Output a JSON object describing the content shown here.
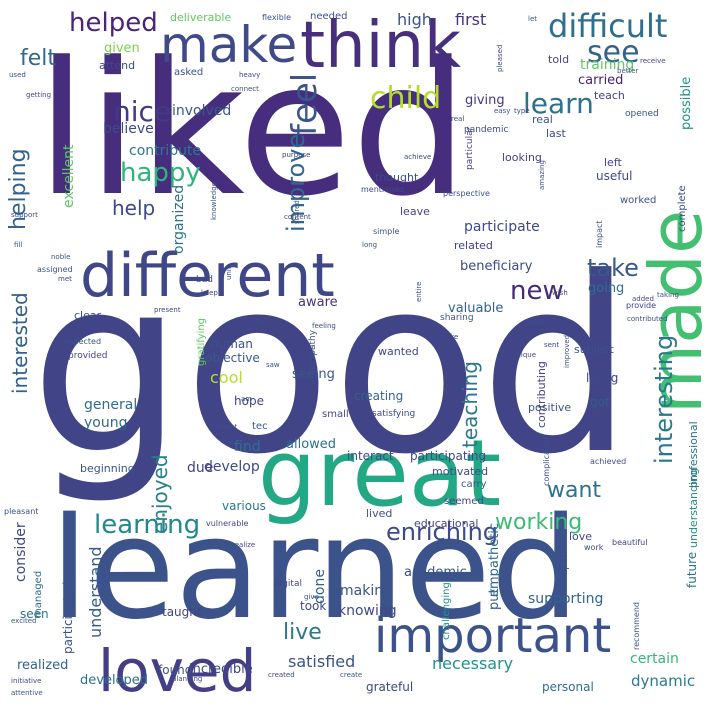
{
  "words": [
    {
      "text": "liked",
      "color": "#462d7e"
    },
    {
      "text": "good",
      "color": "#414487"
    },
    {
      "text": "learned",
      "color": "#3b528b"
    },
    {
      "text": "think",
      "color": "#472f7d"
    },
    {
      "text": "make",
      "color": "#3e4a89"
    },
    {
      "text": "great",
      "color": "#22a884"
    },
    {
      "text": "different",
      "color": "#3f4788"
    },
    {
      "text": "made",
      "color": "#43bf71"
    },
    {
      "text": "important",
      "color": "#3b528b"
    },
    {
      "text": "loved",
      "color": "#433e85"
    },
    {
      "text": "difficult",
      "color": "#2e6e8e"
    },
    {
      "text": "see",
      "color": "#33638d"
    },
    {
      "text": "helped",
      "color": "#482576"
    },
    {
      "text": "child",
      "color": "#b5de2b"
    },
    {
      "text": "learn",
      "color": "#2d718e"
    },
    {
      "text": "nice",
      "color": "#443a83"
    },
    {
      "text": "feel",
      "color": "#3a548c"
    },
    {
      "text": "felt",
      "color": "#31688e"
    },
    {
      "text": "improve",
      "color": "#31688e"
    },
    {
      "text": "happy",
      "color": "#2fb47c"
    },
    {
      "text": "help",
      "color": "#3e4989"
    },
    {
      "text": "helping",
      "color": "#33638d"
    },
    {
      "text": "interesting",
      "color": "#29798e"
    },
    {
      "text": "new",
      "color": "#472c7a"
    },
    {
      "text": "take",
      "color": "#38598c"
    },
    {
      "text": "teaching",
      "color": "#2a778e"
    },
    {
      "text": "enjoyed",
      "color": "#277f8e"
    },
    {
      "text": "interested",
      "color": "#34608d"
    },
    {
      "text": "want",
      "color": "#2c728e"
    },
    {
      "text": "learning",
      "color": "#24878e"
    },
    {
      "text": "working",
      "color": "#3bbb75"
    },
    {
      "text": "enriching",
      "color": "#3e4989"
    },
    {
      "text": "live",
      "color": "#2a788e"
    },
    {
      "text": "understand",
      "color": "#365c8d"
    },
    {
      "text": "satisfied",
      "color": "#3a548c"
    },
    {
      "text": "necessary",
      "color": "#20928c"
    },
    {
      "text": "consider",
      "color": "#3f4788"
    },
    {
      "text": "future",
      "color": "#2c728e"
    },
    {
      "text": "dynamic",
      "color": "#297b8e"
    },
    {
      "text": "participate",
      "color": "#3e4a89"
    },
    {
      "text": "high",
      "color": "#3b528b"
    },
    {
      "text": "first",
      "color": "#46337f"
    },
    {
      "text": "training",
      "color": "#5ec962"
    },
    {
      "text": "contribute",
      "color": "#2a788e"
    },
    {
      "text": "given",
      "color": "#7ad151"
    },
    {
      "text": "excellent",
      "color": "#5ec962"
    },
    {
      "text": "believe",
      "color": "#3e4a89"
    },
    {
      "text": "involved",
      "color": "#38598c"
    },
    {
      "text": "giving",
      "color": "#453882"
    },
    {
      "text": "carried",
      "color": "#482173"
    },
    {
      "text": "possible",
      "color": "#21918c"
    },
    {
      "text": "organized",
      "color": "#2c738e"
    },
    {
      "text": "going",
      "color": "#2e6f8e"
    },
    {
      "text": "beneficiary",
      "color": "#3f4889"
    },
    {
      "text": "aware",
      "color": "#46327e"
    },
    {
      "text": "valuable",
      "color": "#33638d"
    },
    {
      "text": "human",
      "color": "#3b528b"
    },
    {
      "text": "objective",
      "color": "#38598c"
    },
    {
      "text": "cool",
      "color": "#b5de2b"
    },
    {
      "text": "general",
      "color": "#2f6c8e"
    },
    {
      "text": "young",
      "color": "#31688e"
    },
    {
      "text": "develop",
      "color": "#3e4989"
    },
    {
      "text": "due",
      "color": "#414487"
    },
    {
      "text": "find",
      "color": "#2d708e"
    },
    {
      "text": "seeing",
      "color": "#39558c"
    },
    {
      "text": "creating",
      "color": "#33638d"
    },
    {
      "text": "allowed",
      "color": "#2c728e"
    },
    {
      "text": "hope",
      "color": "#414487"
    },
    {
      "text": "beginning",
      "color": "#3b528b"
    },
    {
      "text": "various",
      "color": "#2a788e"
    },
    {
      "text": "participating",
      "color": "#3e4989"
    },
    {
      "text": "interact",
      "color": "#3e4989"
    },
    {
      "text": "making",
      "color": "#3b528b"
    },
    {
      "text": "knowing",
      "color": "#3e4989"
    },
    {
      "text": "done",
      "color": "#365c8d"
    },
    {
      "text": "put",
      "color": "#34608d"
    },
    {
      "text": "empathetic",
      "color": "#2f6c8e"
    },
    {
      "text": "certain",
      "color": "#35b779"
    },
    {
      "text": "supporting",
      "color": "#33638d"
    },
    {
      "text": "academic",
      "color": "#3b528b"
    },
    {
      "text": "incredible",
      "color": "#3e4989"
    },
    {
      "text": "developed",
      "color": "#2d708e"
    },
    {
      "text": "realized",
      "color": "#33638d"
    },
    {
      "text": "found",
      "color": "#3b528b"
    },
    {
      "text": "grateful",
      "color": "#3e4989"
    },
    {
      "text": "personal",
      "color": "#2e6e8e"
    },
    {
      "text": "taught",
      "color": "#414487"
    },
    {
      "text": "took",
      "color": "#3e4989"
    },
    {
      "text": "seen",
      "color": "#2d708e"
    },
    {
      "text": "participated",
      "color": "#3b528b"
    },
    {
      "text": "managed",
      "color": "#2c728e"
    },
    {
      "text": "motivated",
      "color": "#3e4989"
    },
    {
      "text": "educational",
      "color": "#414487"
    },
    {
      "text": "lived",
      "color": "#3b528b"
    },
    {
      "text": "love",
      "color": "#414487"
    },
    {
      "text": "understanding",
      "color": "#21918c"
    },
    {
      "text": "professional",
      "color": "#2c728e"
    },
    {
      "text": "contributing",
      "color": "#414487"
    },
    {
      "text": "positive",
      "color": "#3b528b"
    },
    {
      "text": "living",
      "color": "#3e4989"
    },
    {
      "text": "got",
      "color": "#365c8d"
    },
    {
      "text": "wanted",
      "color": "#3e4989"
    },
    {
      "text": "subject",
      "color": "#3b528b"
    },
    {
      "text": "related",
      "color": "#414487"
    },
    {
      "text": "clear",
      "color": "#3e4989"
    },
    {
      "text": "looking",
      "color": "#414487"
    },
    {
      "text": "thought",
      "color": "#3e4989"
    },
    {
      "text": "leave",
      "color": "#414487"
    },
    {
      "text": "worked",
      "color": "#3b528b"
    },
    {
      "text": "useful",
      "color": "#3e4989"
    },
    {
      "text": "left",
      "color": "#414487"
    },
    {
      "text": "last",
      "color": "#3e4989"
    },
    {
      "text": "real",
      "color": "#3b528b"
    },
    {
      "text": "teach",
      "color": "#414487"
    },
    {
      "text": "told",
      "color": "#3e4989"
    },
    {
      "text": "needed",
      "color": "#3b528b"
    },
    {
      "text": "deliverable",
      "color": "#5ec962"
    },
    {
      "text": "attend",
      "color": "#3e4989"
    },
    {
      "text": "asked",
      "color": "#3b528b"
    },
    {
      "text": "gratifying",
      "color": "#5ec962"
    },
    {
      "text": "tec",
      "color": "#3b528b"
    },
    {
      "text": "small",
      "color": "#3e4989"
    },
    {
      "text": "seemed",
      "color": "#414487"
    },
    {
      "text": "carry",
      "color": "#3b528b"
    },
    {
      "text": "challenging",
      "color": "#21918c"
    },
    {
      "text": "open",
      "color": "#3b528b"
    },
    {
      "text": "complete",
      "color": "#3e4989"
    },
    {
      "text": "opened",
      "color": "#3b528b"
    },
    {
      "text": "pandemic",
      "color": "#3e4989"
    },
    {
      "text": "particular",
      "color": "#414487"
    },
    {
      "text": "impact",
      "color": "#3b528b"
    },
    {
      "text": "satisfying",
      "color": "#3e4989"
    },
    {
      "text": "empathy",
      "color": "#3b528b"
    },
    {
      "text": "bad",
      "color": "#3e4989"
    },
    {
      "text": "sharing",
      "color": "#3b528b"
    },
    {
      "text": "provided",
      "color": "#3e4989"
    },
    {
      "text": "expected",
      "color": "#3b528b"
    },
    {
      "text": "provide",
      "color": "#414487"
    },
    {
      "text": "achieved",
      "color": "#3b528b"
    },
    {
      "text": "digital",
      "color": "#3e4989"
    },
    {
      "text": "complicated",
      "color": "#3b528b"
    },
    {
      "text": "beautiful",
      "color": "#414487"
    },
    {
      "text": "recommend",
      "color": "#3b528b"
    },
    {
      "text": "work",
      "color": "#3e4989"
    },
    {
      "text": "pleasant",
      "color": "#3b528b"
    },
    {
      "text": "vulnerable",
      "color": "#3e4989"
    },
    {
      "text": "assigned",
      "color": "#3b528b"
    },
    {
      "text": "mentioned",
      "color": "#3e4989"
    },
    {
      "text": "perspective",
      "color": "#3b528b"
    },
    {
      "text": "purpose",
      "color": "#414487"
    },
    {
      "text": "achieve",
      "color": "#3e4989"
    },
    {
      "text": "knowledge",
      "color": "#3b528b"
    },
    {
      "text": "content",
      "color": "#3e4989"
    },
    {
      "text": "simple",
      "color": "#3b528b"
    },
    {
      "text": "entire",
      "color": "#3e4989"
    },
    {
      "text": "current",
      "color": "#3b528b"
    },
    {
      "text": "present",
      "color": "#3e4989"
    },
    {
      "text": "flexible",
      "color": "#3b528b"
    },
    {
      "text": "pleased",
      "color": "#3e4989"
    },
    {
      "text": "let",
      "color": "#3b528b"
    },
    {
      "text": "receive",
      "color": "#3e4989"
    },
    {
      "text": "better",
      "color": "#3b528b"
    },
    {
      "text": "heavy",
      "color": "#3e4989"
    },
    {
      "text": "connect",
      "color": "#3b528b"
    },
    {
      "text": "getting",
      "color": "#3e4989"
    },
    {
      "text": "used",
      "color": "#3b528b"
    },
    {
      "text": "support",
      "color": "#3e4989"
    },
    {
      "text": "noble",
      "color": "#3b528b"
    },
    {
      "text": "met",
      "color": "#3e4989"
    },
    {
      "text": "fill",
      "color": "#3b528b"
    },
    {
      "text": "keep",
      "color": "#3e4989"
    },
    {
      "text": "long",
      "color": "#3b528b"
    },
    {
      "text": "feeling",
      "color": "#3e4989"
    },
    {
      "text": "shared",
      "color": "#3b528b"
    },
    {
      "text": "wish",
      "color": "#3e4989"
    },
    {
      "text": "excited",
      "color": "#3b528b"
    },
    {
      "text": "initiative",
      "color": "#3e4989"
    },
    {
      "text": "attentive",
      "color": "#3b528b"
    },
    {
      "text": "created",
      "color": "#3e4989"
    },
    {
      "text": "create",
      "color": "#3b528b"
    },
    {
      "text": "planning",
      "color": "#3e4989"
    },
    {
      "text": "give",
      "color": "#3b528b"
    },
    {
      "text": "realize",
      "color": "#3e4989"
    },
    {
      "text": "easy",
      "color": "#3b528b"
    },
    {
      "text": "type",
      "color": "#3e4989"
    },
    {
      "text": "amazing",
      "color": "#3b528b"
    },
    {
      "text": "unique",
      "color": "#3e4989"
    },
    {
      "text": "since",
      "color": "#3b528b"
    },
    {
      "text": "joke",
      "color": "#3e4989"
    },
    {
      "text": "tell",
      "color": "#3b528b"
    },
    {
      "text": "saw",
      "color": "#3e4989"
    },
    {
      "text": "am",
      "color": "#3b528b"
    },
    {
      "text": "unit",
      "color": "#3e4989"
    },
    {
      "text": "contributed",
      "color": "#3b528b"
    },
    {
      "text": "added",
      "color": "#3e4989"
    },
    {
      "text": "improved",
      "color": "#3b528b"
    },
    {
      "text": "sent",
      "color": "#3e4989"
    },
    {
      "text": "taking",
      "color": "#3b528b"
    },
    {
      "text": "real",
      "color": "#3e4989"
    }
  ]
}
